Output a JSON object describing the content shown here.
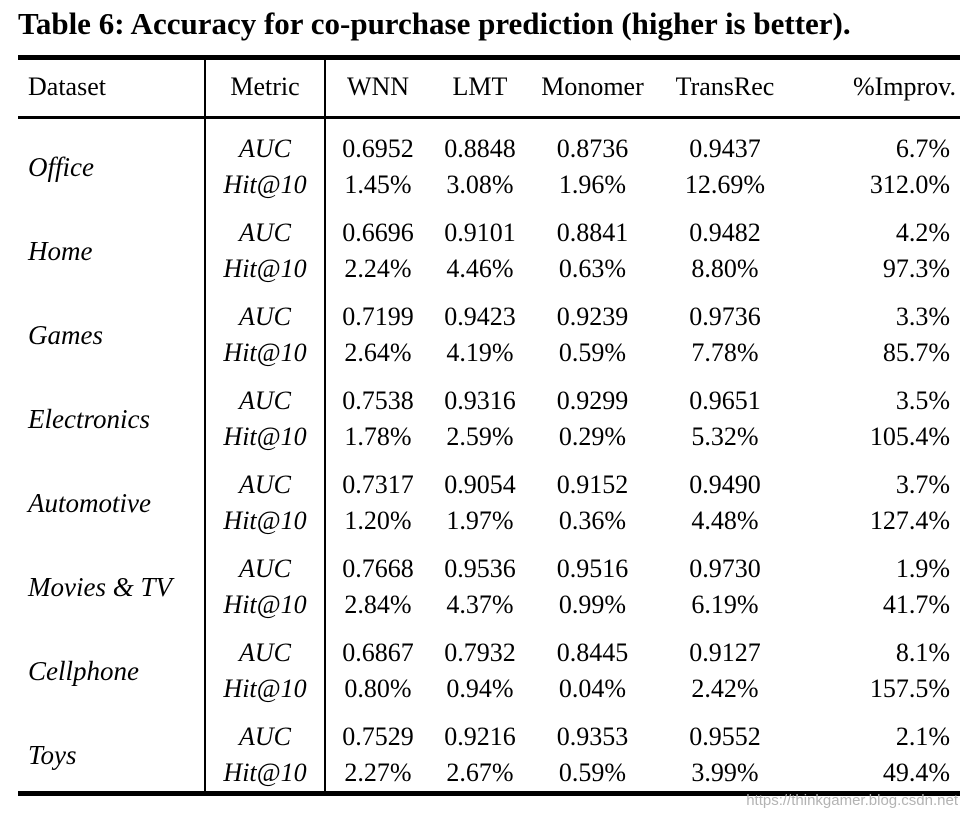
{
  "caption": "Table 6: Accuracy for co-purchase prediction (higher is better).",
  "table": {
    "columns": [
      "Dataset",
      "Metric",
      "WNN",
      "LMT",
      "Monomer",
      "TransRec",
      "%Improv."
    ],
    "groups": [
      {
        "dataset": "Office",
        "rows": [
          {
            "metric": "AUC",
            "values": [
              "0.6952",
              "0.8848",
              "0.8736",
              "0.9437",
              "6.7%"
            ]
          },
          {
            "metric": "Hit@10",
            "values": [
              "1.45%",
              "3.08%",
              "1.96%",
              "12.69%",
              "312.0%"
            ]
          }
        ]
      },
      {
        "dataset": "Home",
        "rows": [
          {
            "metric": "AUC",
            "values": [
              "0.6696",
              "0.9101",
              "0.8841",
              "0.9482",
              "4.2%"
            ]
          },
          {
            "metric": "Hit@10",
            "values": [
              "2.24%",
              "4.46%",
              "0.63%",
              "8.80%",
              "97.3%"
            ]
          }
        ]
      },
      {
        "dataset": "Games",
        "rows": [
          {
            "metric": "AUC",
            "values": [
              "0.7199",
              "0.9423",
              "0.9239",
              "0.9736",
              "3.3%"
            ]
          },
          {
            "metric": "Hit@10",
            "values": [
              "2.64%",
              "4.19%",
              "0.59%",
              "7.78%",
              "85.7%"
            ]
          }
        ]
      },
      {
        "dataset": "Electronics",
        "rows": [
          {
            "metric": "AUC",
            "values": [
              "0.7538",
              "0.9316",
              "0.9299",
              "0.9651",
              "3.5%"
            ]
          },
          {
            "metric": "Hit@10",
            "values": [
              "1.78%",
              "2.59%",
              "0.29%",
              "5.32%",
              "105.4%"
            ]
          }
        ]
      },
      {
        "dataset": "Automotive",
        "rows": [
          {
            "metric": "AUC",
            "values": [
              "0.7317",
              "0.9054",
              "0.9152",
              "0.9490",
              "3.7%"
            ]
          },
          {
            "metric": "Hit@10",
            "values": [
              "1.20%",
              "1.97%",
              "0.36%",
              "4.48%",
              "127.4%"
            ]
          }
        ]
      },
      {
        "dataset": "Movies & TV",
        "rows": [
          {
            "metric": "AUC",
            "values": [
              "0.7668",
              "0.9536",
              "0.9516",
              "0.9730",
              "1.9%"
            ]
          },
          {
            "metric": "Hit@10",
            "values": [
              "2.84%",
              "4.37%",
              "0.99%",
              "6.19%",
              "41.7%"
            ]
          }
        ]
      },
      {
        "dataset": "Cellphone",
        "rows": [
          {
            "metric": "AUC",
            "values": [
              "0.6867",
              "0.7932",
              "0.8445",
              "0.9127",
              "8.1%"
            ]
          },
          {
            "metric": "Hit@10",
            "values": [
              "0.80%",
              "0.94%",
              "0.04%",
              "2.42%",
              "157.5%"
            ]
          }
        ]
      },
      {
        "dataset": "Toys",
        "rows": [
          {
            "metric": "AUC",
            "values": [
              "0.7529",
              "0.9216",
              "0.9353",
              "0.9552",
              "2.1%"
            ]
          },
          {
            "metric": "Hit@10",
            "values": [
              "2.27%",
              "2.67%",
              "0.59%",
              "3.99%",
              "49.4%"
            ]
          }
        ]
      }
    ]
  },
  "watermark": {
    "text": "https://thinkgamer.blog.csdn.net",
    "color": "#b3b3b3"
  },
  "colors": {
    "text": "#000000",
    "background": "#ffffff",
    "rule": "#000000"
  }
}
